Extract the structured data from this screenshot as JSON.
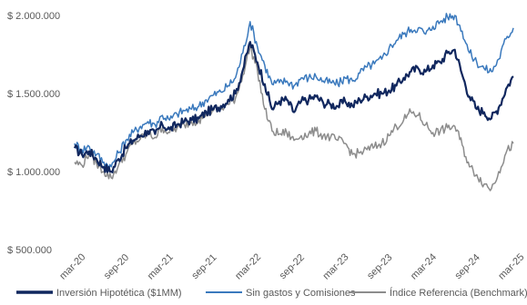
{
  "chart_data": {
    "type": "line",
    "title": "",
    "xlabel": "",
    "ylabel": "",
    "ylim": [
      500000,
      2000000
    ],
    "x_range": [
      "2020-03",
      "2025-03"
    ],
    "yticks": [
      {
        "value": 2000000,
        "label": "$ 2.000.000"
      },
      {
        "value": 1500000,
        "label": "$ 1.500.000"
      },
      {
        "value": 1000000,
        "label": "$ 1.000.000"
      },
      {
        "value": 500000,
        "label": "$ 500.000"
      }
    ],
    "xticks": [
      {
        "value": "2020-03",
        "label": "mar-20"
      },
      {
        "value": "2020-09",
        "label": "sep-20"
      },
      {
        "value": "2021-03",
        "label": "mar-21"
      },
      {
        "value": "2021-09",
        "label": "sep-21"
      },
      {
        "value": "2022-03",
        "label": "mar-22"
      },
      {
        "value": "2022-09",
        "label": "sep-22"
      },
      {
        "value": "2023-03",
        "label": "mar-23"
      },
      {
        "value": "2023-09",
        "label": "sep-23"
      },
      {
        "value": "2024-03",
        "label": "mar-24"
      },
      {
        "value": "2024-09",
        "label": "sep-24"
      },
      {
        "value": "2025-03",
        "label": "mar-25"
      }
    ],
    "grid": false,
    "legend_position": "bottom",
    "series": [
      {
        "name": "Inversión Hipotética ($1MM)",
        "color": "#10275e",
        "x": [
          "2020-03",
          "2020-04",
          "2020-05",
          "2020-06",
          "2020-07",
          "2020-08",
          "2020-09",
          "2020-10",
          "2020-11",
          "2020-12",
          "2021-01",
          "2021-02",
          "2021-03",
          "2021-04",
          "2021-05",
          "2021-06",
          "2021-07",
          "2021-08",
          "2021-09",
          "2021-10",
          "2021-11",
          "2021-12",
          "2022-01",
          "2022-02",
          "2022-03",
          "2022-04",
          "2022-05",
          "2022-06",
          "2022-07",
          "2022-08",
          "2022-09",
          "2022-10",
          "2022-11",
          "2022-12",
          "2023-01",
          "2023-02",
          "2023-03",
          "2023-04",
          "2023-05",
          "2023-06",
          "2023-07",
          "2023-08",
          "2023-09",
          "2023-10",
          "2023-11",
          "2023-12",
          "2024-01",
          "2024-02",
          "2024-03",
          "2024-04",
          "2024-05",
          "2024-06",
          "2024-07",
          "2024-08",
          "2024-09",
          "2024-10",
          "2024-11",
          "2024-12",
          "2025-01",
          "2025-02",
          "2025-03"
        ],
        "values": [
          1150000,
          1110000,
          1130000,
          1080000,
          1030000,
          1000000,
          1080000,
          1150000,
          1200000,
          1230000,
          1260000,
          1240000,
          1300000,
          1270000,
          1300000,
          1320000,
          1330000,
          1340000,
          1380000,
          1400000,
          1420000,
          1460000,
          1500000,
          1650000,
          1830000,
          1700000,
          1560000,
          1400000,
          1450000,
          1460000,
          1380000,
          1450000,
          1460000,
          1480000,
          1440000,
          1430000,
          1420000,
          1450000,
          1420000,
          1460000,
          1480000,
          1500000,
          1500000,
          1520000,
          1550000,
          1600000,
          1640000,
          1660000,
          1640000,
          1680000,
          1700000,
          1760000,
          1780000,
          1620000,
          1480000,
          1400000,
          1380000,
          1340000,
          1410000,
          1530000,
          1610000
        ]
      },
      {
        "name": "Sin gastos y Comisiones",
        "color": "#3a79bd",
        "x": [
          "2020-03",
          "2020-04",
          "2020-05",
          "2020-06",
          "2020-07",
          "2020-08",
          "2020-09",
          "2020-10",
          "2020-11",
          "2020-12",
          "2021-01",
          "2021-02",
          "2021-03",
          "2021-04",
          "2021-05",
          "2021-06",
          "2021-07",
          "2021-08",
          "2021-09",
          "2021-10",
          "2021-11",
          "2021-12",
          "2022-01",
          "2022-02",
          "2022-03",
          "2022-04",
          "2022-05",
          "2022-06",
          "2022-07",
          "2022-08",
          "2022-09",
          "2022-10",
          "2022-11",
          "2022-12",
          "2023-01",
          "2023-02",
          "2023-03",
          "2023-04",
          "2023-05",
          "2023-06",
          "2023-07",
          "2023-08",
          "2023-09",
          "2023-10",
          "2023-11",
          "2023-12",
          "2024-01",
          "2024-02",
          "2024-03",
          "2024-04",
          "2024-05",
          "2024-06",
          "2024-07",
          "2024-08",
          "2024-09",
          "2024-10",
          "2024-11",
          "2024-12",
          "2025-01",
          "2025-02",
          "2025-03"
        ],
        "values": [
          1180000,
          1140000,
          1160000,
          1110000,
          1060000,
          1030000,
          1120000,
          1200000,
          1250000,
          1290000,
          1320000,
          1300000,
          1360000,
          1330000,
          1370000,
          1390000,
          1400000,
          1420000,
          1460000,
          1490000,
          1510000,
          1550000,
          1600000,
          1760000,
          1960000,
          1800000,
          1680000,
          1560000,
          1570000,
          1580000,
          1550000,
          1600000,
          1600000,
          1610000,
          1580000,
          1570000,
          1560000,
          1600000,
          1580000,
          1630000,
          1670000,
          1690000,
          1720000,
          1790000,
          1840000,
          1880000,
          1910000,
          1920000,
          1880000,
          1930000,
          1960000,
          1990000,
          2000000,
          1900000,
          1760000,
          1700000,
          1660000,
          1640000,
          1720000,
          1850000,
          1920000
        ]
      },
      {
        "name": "Índice Referencia (Benchmark)",
        "color": "#8c8c8c",
        "x": [
          "2020-03",
          "2020-04",
          "2020-05",
          "2020-06",
          "2020-07",
          "2020-08",
          "2020-09",
          "2020-10",
          "2020-11",
          "2020-12",
          "2021-01",
          "2021-02",
          "2021-03",
          "2021-04",
          "2021-05",
          "2021-06",
          "2021-07",
          "2021-08",
          "2021-09",
          "2021-10",
          "2021-11",
          "2021-12",
          "2022-01",
          "2022-02",
          "2022-03",
          "2022-04",
          "2022-05",
          "2022-06",
          "2022-07",
          "2022-08",
          "2022-09",
          "2022-10",
          "2022-11",
          "2022-12",
          "2023-01",
          "2023-02",
          "2023-03",
          "2023-04",
          "2023-05",
          "2023-06",
          "2023-07",
          "2023-08",
          "2023-09",
          "2023-10",
          "2023-11",
          "2023-12",
          "2024-01",
          "2024-02",
          "2024-03",
          "2024-04",
          "2024-05",
          "2024-06",
          "2024-07",
          "2024-08",
          "2024-09",
          "2024-10",
          "2024-11",
          "2024-12",
          "2025-01",
          "2025-02",
          "2025-03"
        ],
        "values": [
          1060000,
          1040000,
          1120000,
          1050000,
          1000000,
          960000,
          1040000,
          1110000,
          1180000,
          1210000,
          1240000,
          1220000,
          1280000,
          1250000,
          1280000,
          1300000,
          1320000,
          1330000,
          1370000,
          1390000,
          1400000,
          1430000,
          1470000,
          1620000,
          1800000,
          1650000,
          1400000,
          1260000,
          1240000,
          1250000,
          1200000,
          1230000,
          1240000,
          1260000,
          1230000,
          1220000,
          1200000,
          1180000,
          1110000,
          1120000,
          1140000,
          1160000,
          1180000,
          1230000,
          1290000,
          1330000,
          1380000,
          1360000,
          1300000,
          1250000,
          1260000,
          1280000,
          1290000,
          1170000,
          1030000,
          980000,
          920000,
          890000,
          1000000,
          1120000,
          1180000
        ]
      }
    ]
  }
}
